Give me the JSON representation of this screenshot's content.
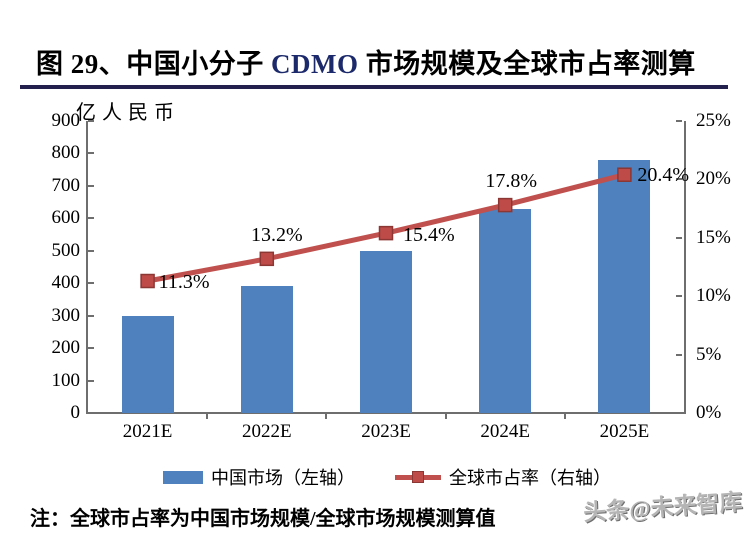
{
  "title": {
    "prefix": "图 29、中国小分子 ",
    "latin": "CDMO",
    "suffix": " 市场规模及全球市占率测算"
  },
  "chart_data": {
    "type": "bar+line combo",
    "categories": [
      "2021E",
      "2022E",
      "2023E",
      "2024E",
      "2025E"
    ],
    "series": [
      {
        "name": "中国市场（左轴）",
        "type": "bar",
        "axis": "left",
        "values": [
          300,
          390,
          500,
          630,
          780
        ],
        "color": "#4E81BD"
      },
      {
        "name": "全球市占率（右轴）",
        "type": "line",
        "axis": "right",
        "values": [
          11.3,
          13.2,
          15.4,
          17.8,
          20.4
        ],
        "labels": [
          "11.3%",
          "13.2%",
          "15.4%",
          "17.8%",
          "20.4%"
        ],
        "color": "#C0504D"
      }
    ],
    "left_axis": {
      "title": "亿人民币",
      "min": 0,
      "max": 900,
      "step": 100,
      "ticks": [
        "900",
        "800",
        "700",
        "600",
        "500",
        "400",
        "300",
        "200",
        "100",
        "0"
      ]
    },
    "right_axis": {
      "min": 0,
      "max": 25,
      "step": 5,
      "ticks": [
        "25%",
        "20%",
        "15%",
        "10%",
        "5%",
        "0%"
      ]
    },
    "grid": false,
    "legend_position": "bottom"
  },
  "note": "注：全球市占率为中国市场规模/全球市场规模测算值",
  "watermark": "头条@未来智库",
  "colors": {
    "bar": "#4E81BD",
    "line": "#C0504D",
    "marker_border": "#8C3734",
    "title_underline": "#23204e",
    "axis": "#6e6e6e",
    "watermark_gray": "#b5b5b5",
    "title_latin": "#1c2a6b"
  }
}
